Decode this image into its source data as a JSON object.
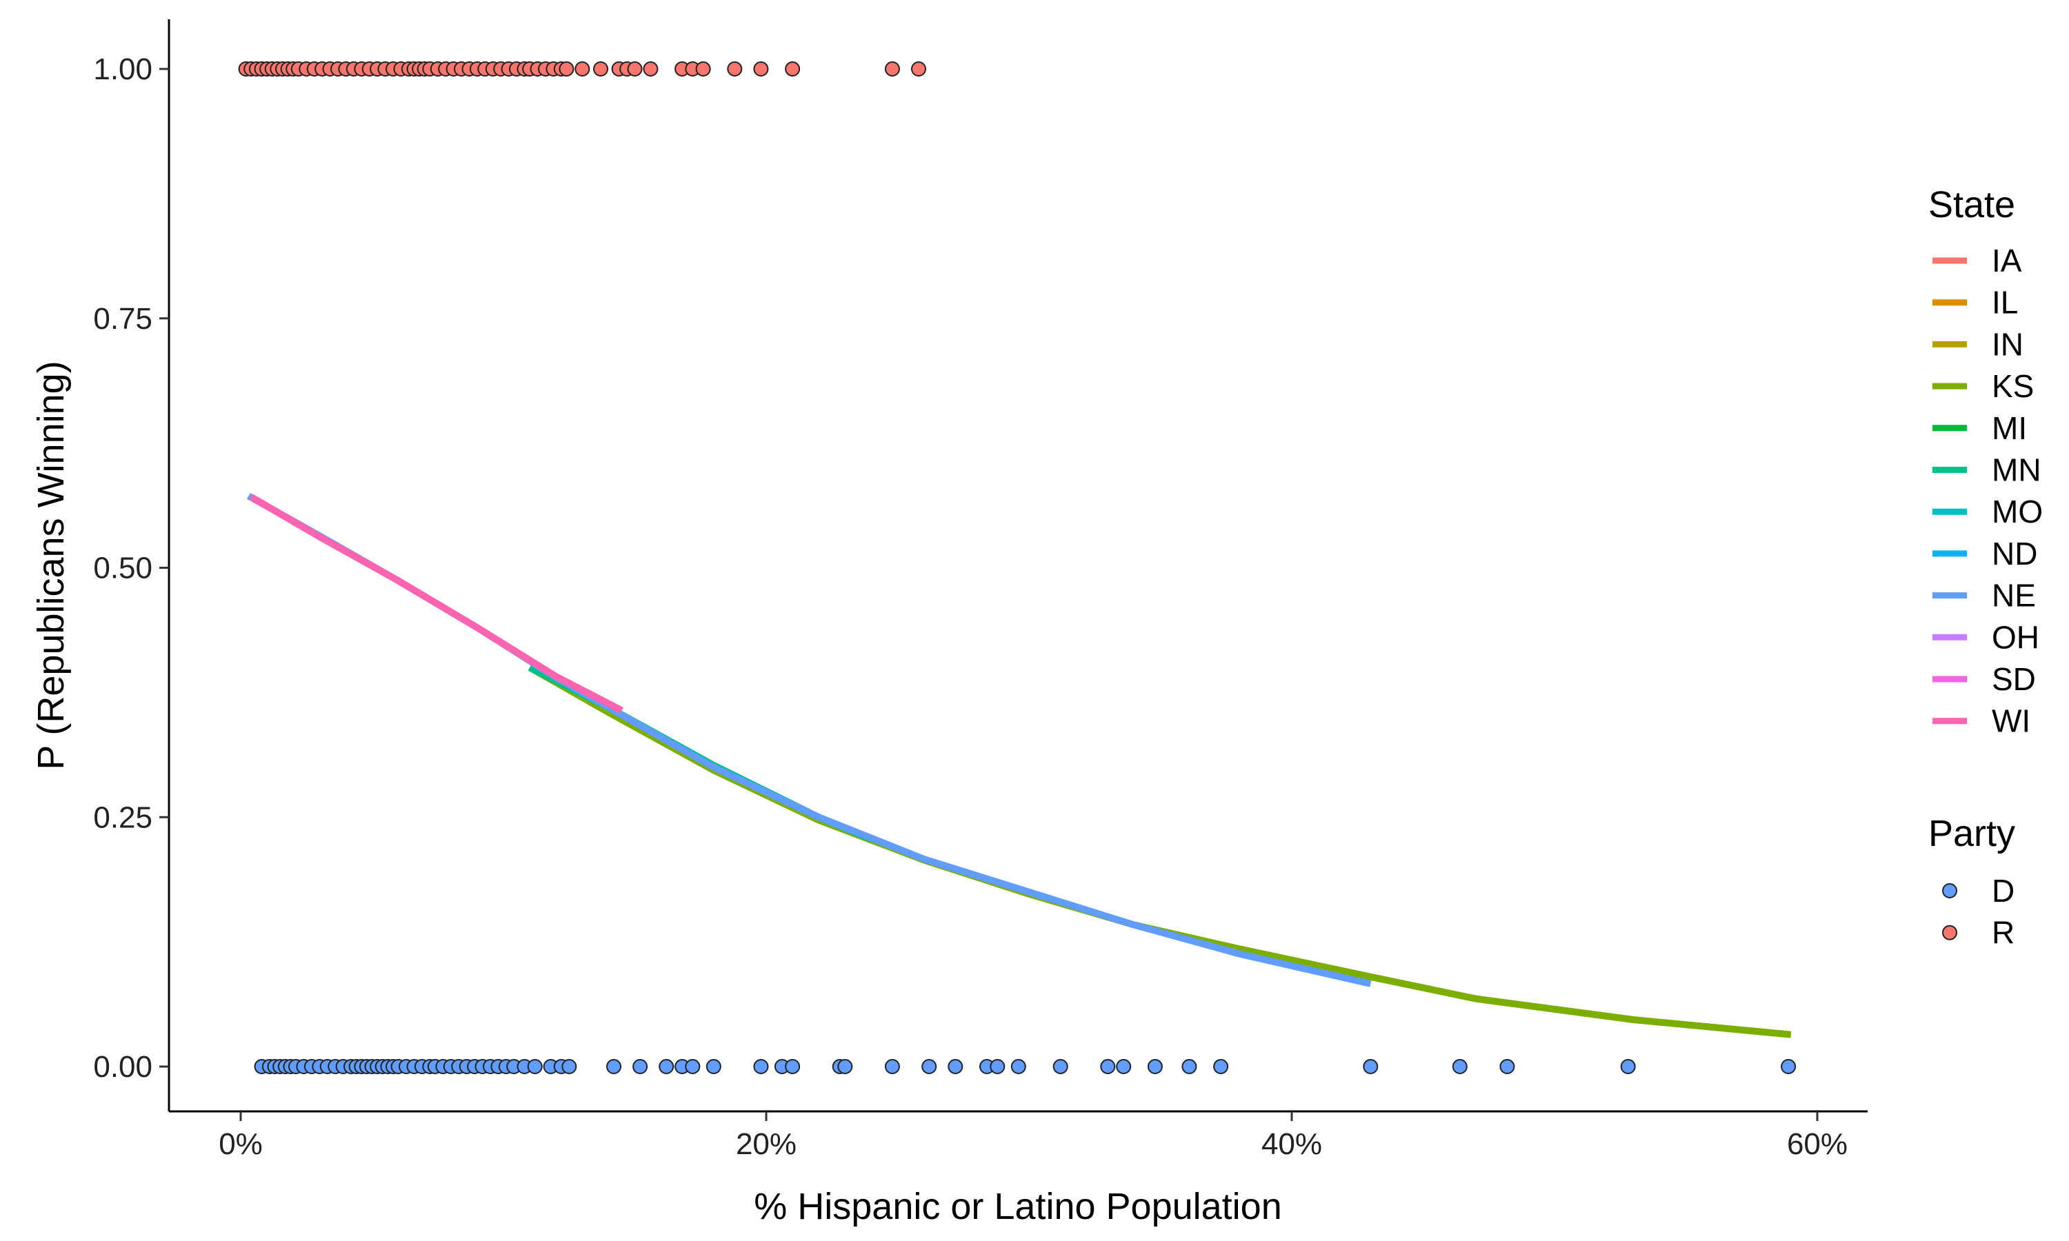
{
  "chart_data": {
    "type": "scatter",
    "title": "",
    "xlabel": "% Hispanic or Latino Population",
    "ylabel": "P (Republicans Winning)",
    "xlim": [
      -0.02,
      0.6
    ],
    "ylim": [
      0,
      1
    ],
    "x_ticks": [
      0,
      0.2,
      0.4,
      0.6
    ],
    "x_tick_labels": [
      "0%",
      "20%",
      "40%",
      "60%"
    ],
    "y_ticks": [
      0,
      0.25,
      0.5,
      0.75,
      1.0
    ],
    "y_tick_labels": [
      "0.00",
      "0.25",
      "0.50",
      "0.75",
      "1.00"
    ],
    "grid": false,
    "legend_placement": "right",
    "legend_state": {
      "title": "State",
      "items": [
        {
          "label": "IA",
          "color": "#F8766D"
        },
        {
          "label": "IL",
          "color": "#DE8C00"
        },
        {
          "label": "IN",
          "color": "#B79F00"
        },
        {
          "label": "KS",
          "color": "#7CAE00"
        },
        {
          "label": "MI",
          "color": "#00BA38"
        },
        {
          "label": "MN",
          "color": "#00C08B"
        },
        {
          "label": "MO",
          "color": "#00BFC4"
        },
        {
          "label": "ND",
          "color": "#00B4F0"
        },
        {
          "label": "NE",
          "color": "#619CFF"
        },
        {
          "label": "OH",
          "color": "#C77CFF"
        },
        {
          "label": "SD",
          "color": "#F564E3"
        },
        {
          "label": "WI",
          "color": "#FF64B0"
        }
      ]
    },
    "legend_party": {
      "title": "Party",
      "items": [
        {
          "label": "D",
          "color": "#619CFF"
        },
        {
          "label": "R",
          "color": "#F8766D"
        }
      ]
    },
    "points_R": {
      "y": 1,
      "color": "#F8766D",
      "x": [
        0.002,
        0.004,
        0.006,
        0.008,
        0.01,
        0.012,
        0.014,
        0.016,
        0.018,
        0.02,
        0.022,
        0.025,
        0.028,
        0.031,
        0.034,
        0.037,
        0.04,
        0.043,
        0.046,
        0.049,
        0.052,
        0.055,
        0.058,
        0.061,
        0.064,
        0.066,
        0.068,
        0.07,
        0.072,
        0.075,
        0.078,
        0.081,
        0.084,
        0.087,
        0.09,
        0.093,
        0.096,
        0.099,
        0.102,
        0.105,
        0.108,
        0.11,
        0.113,
        0.116,
        0.119,
        0.122,
        0.124,
        0.13,
        0.137,
        0.144,
        0.147,
        0.15,
        0.156,
        0.168,
        0.172,
        0.176,
        0.188,
        0.198,
        0.21,
        0.248,
        0.258
      ]
    },
    "points_D": {
      "y": 0,
      "color": "#619CFF",
      "x": [
        0.008,
        0.011,
        0.013,
        0.015,
        0.017,
        0.019,
        0.021,
        0.024,
        0.027,
        0.03,
        0.033,
        0.036,
        0.039,
        0.042,
        0.044,
        0.046,
        0.048,
        0.05,
        0.052,
        0.054,
        0.056,
        0.058,
        0.06,
        0.063,
        0.066,
        0.069,
        0.072,
        0.074,
        0.077,
        0.08,
        0.083,
        0.086,
        0.089,
        0.092,
        0.095,
        0.098,
        0.101,
        0.104,
        0.108,
        0.112,
        0.118,
        0.122,
        0.125,
        0.142,
        0.152,
        0.162,
        0.168,
        0.172,
        0.18,
        0.198,
        0.206,
        0.21,
        0.228,
        0.23,
        0.248,
        0.262,
        0.272,
        0.284,
        0.288,
        0.296,
        0.312,
        0.33,
        0.336,
        0.348,
        0.361,
        0.373,
        0.43,
        0.464,
        0.482,
        0.528,
        0.589
      ]
    },
    "series": [
      {
        "name": "KS",
        "color": "#7CAE00",
        "x": [
          0.11,
          0.14,
          0.18,
          0.22,
          0.26,
          0.3,
          0.34,
          0.38,
          0.43,
          0.47,
          0.53,
          0.59
        ],
        "y": [
          0.4,
          0.355,
          0.297,
          0.247,
          0.207,
          0.173,
          0.142,
          0.118,
          0.09,
          0.068,
          0.047,
          0.032
        ]
      },
      {
        "name": "MN",
        "color": "#00C08B",
        "x": [
          0.11,
          0.14,
          0.18,
          0.22,
          0.24
        ],
        "y": [
          0.4,
          0.36,
          0.302,
          0.25,
          0.228
        ]
      },
      {
        "name": "NE",
        "color": "#619CFF",
        "x": [
          0.003,
          0.03,
          0.06,
          0.09,
          0.12,
          0.15,
          0.18,
          0.22,
          0.26,
          0.3,
          0.34,
          0.38,
          0.43
        ],
        "y": [
          0.572,
          0.532,
          0.487,
          0.44,
          0.39,
          0.345,
          0.3,
          0.25,
          0.208,
          0.175,
          0.142,
          0.113,
          0.083
        ]
      },
      {
        "name": "WI",
        "color": "#FF64B0",
        "x": [
          0.004,
          0.03,
          0.06,
          0.09,
          0.12,
          0.145
        ],
        "y": [
          0.571,
          0.531,
          0.487,
          0.44,
          0.391,
          0.357
        ]
      }
    ]
  }
}
